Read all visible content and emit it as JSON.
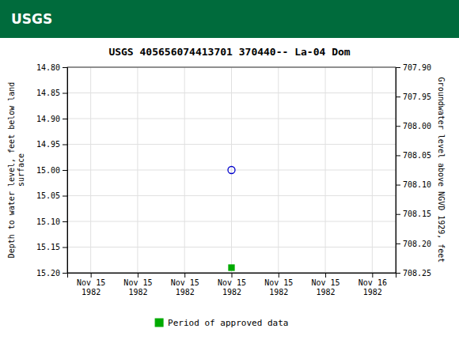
{
  "chart_data": {
    "type": "scatter",
    "title": "USGS 405656074413701 370440-- La-04 Dom",
    "annotations": [
      "USGS"
    ],
    "y_label": "Depth to water level, feet below land\nsurface",
    "y2_label": "Groundwater level above NGVD 1929, feet",
    "categories": [
      "Nov 15\n1982",
      "Nov 15\n1982",
      "Nov 15\n1982",
      "Nov 15\n1982",
      "Nov 15\n1982",
      "Nov 15\n1982",
      "Nov 16\n1982"
    ],
    "ylim": [
      15.2,
      14.8
    ],
    "yticks": [
      {
        "value": 14.8,
        "label": "14.80"
      },
      14.85,
      {
        "value": 14.9,
        "label": "14.90"
      },
      14.95,
      {
        "value": 15.0,
        "label": "15.00"
      },
      15.05,
      {
        "value": 15.1,
        "label": "15.10"
      },
      15.15,
      {
        "value": 15.2,
        "label": "15.20"
      }
    ],
    "y2lim": [
      708.25,
      707.9
    ],
    "y2ticks": [
      {
        "value": 707.9,
        "label": "707.90"
      },
      707.95,
      {
        "value": 708.0,
        "label": "708.00"
      },
      708.05,
      {
        "value": 708.1,
        "label": "708.10"
      },
      708.15,
      {
        "value": 708.2,
        "label": "708.20"
      },
      708.25
    ],
    "grid": true,
    "legend": "bottom",
    "series": [
      {
        "values": [
          null,
          null,
          null,
          15.0,
          null,
          null,
          null
        ],
        "color": "#0000cc",
        "marker": "open-circle"
      },
      {
        "name": "Period of approved data",
        "values": [
          null,
          null,
          null,
          15.19,
          null,
          null,
          null
        ],
        "color": "#00aa00",
        "marker": "square"
      }
    ]
  }
}
